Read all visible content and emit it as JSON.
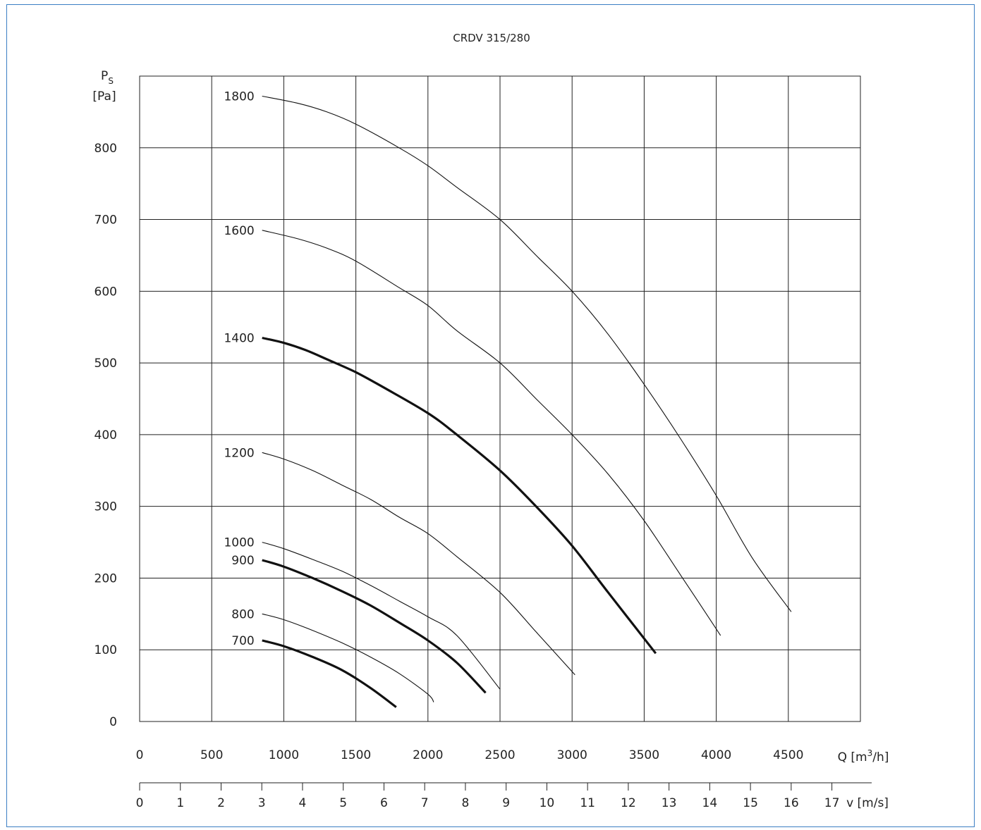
{
  "chart_data": {
    "type": "line",
    "title": "CRDV 315/280",
    "ylabel_symbol": "P",
    "ylabel_subscript": "S",
    "ylabel_unit": "[Pa]",
    "xlabel_prefix": "Q [m",
    "xlabel_superscript": "3",
    "xlabel_suffix": "/h]",
    "vlabel": "v [m/s]",
    "xlim": [
      0,
      5000
    ],
    "ylim": [
      0,
      900
    ],
    "x_ticks": [
      "0",
      "500",
      "1000",
      "1500",
      "2000",
      "2500",
      "3000",
      "3500",
      "4000",
      "4500"
    ],
    "y_ticks": [
      "0",
      "100",
      "200",
      "300",
      "400",
      "500",
      "600",
      "700",
      "800"
    ],
    "v_ticks": [
      "0",
      "1",
      "2",
      "3",
      "4",
      "5",
      "6",
      "7",
      "8",
      "9",
      "10",
      "11",
      "12",
      "13",
      "14",
      "15",
      "16",
      "17"
    ],
    "v_max_at_xmax": 17.7,
    "grid": true,
    "series": [
      {
        "name": "1800",
        "bold": false,
        "x": [
          850,
          1100,
          1300,
          1500,
          1800,
          2000,
          2200,
          2500,
          2750,
          3000,
          3250,
          3500,
          3750,
          4000,
          4250,
          4520
        ],
        "y": [
          872,
          862,
          850,
          833,
          800,
          775,
          745,
          700,
          650,
          600,
          540,
          470,
          395,
          315,
          228,
          153
        ]
      },
      {
        "name": "1600",
        "bold": false,
        "x": [
          850,
          1100,
          1300,
          1500,
          1800,
          2000,
          2200,
          2500,
          2750,
          3000,
          3250,
          3500,
          3750,
          4030
        ],
        "y": [
          685,
          673,
          660,
          642,
          605,
          580,
          545,
          500,
          450,
          400,
          345,
          280,
          205,
          120
        ]
      },
      {
        "name": "1400",
        "bold": true,
        "x": [
          850,
          1000,
          1150,
          1300,
          1500,
          1700,
          2000,
          2200,
          2500,
          2750,
          3000,
          3250,
          3580
        ],
        "y": [
          535,
          528,
          518,
          505,
          487,
          465,
          430,
          400,
          350,
          300,
          245,
          180,
          95
        ]
      },
      {
        "name": "1200",
        "bold": false,
        "x": [
          850,
          1000,
          1200,
          1400,
          1600,
          1800,
          2000,
          2200,
          2500,
          2750,
          3020
        ],
        "y": [
          375,
          366,
          350,
          330,
          310,
          285,
          262,
          230,
          180,
          125,
          65
        ]
      },
      {
        "name": "1000",
        "bold": false,
        "x": [
          850,
          1000,
          1200,
          1400,
          1600,
          1800,
          2000,
          2200,
          2500
        ],
        "y": [
          250,
          241,
          226,
          210,
          190,
          168,
          146,
          120,
          45
        ]
      },
      {
        "name": "900",
        "bold": true,
        "x": [
          850,
          1000,
          1200,
          1400,
          1600,
          1800,
          2000,
          2200,
          2400
        ],
        "y": [
          225,
          216,
          200,
          182,
          162,
          138,
          113,
          82,
          40
        ]
      },
      {
        "name": "800",
        "bold": false,
        "x": [
          850,
          1000,
          1200,
          1400,
          1600,
          1800,
          2000,
          2040
        ],
        "y": [
          150,
          142,
          127,
          110,
          90,
          67,
          38,
          27
        ]
      },
      {
        "name": "700",
        "bold": true,
        "x": [
          850,
          1000,
          1200,
          1400,
          1600,
          1780
        ],
        "y": [
          113,
          105,
          90,
          72,
          47,
          20
        ]
      }
    ]
  }
}
